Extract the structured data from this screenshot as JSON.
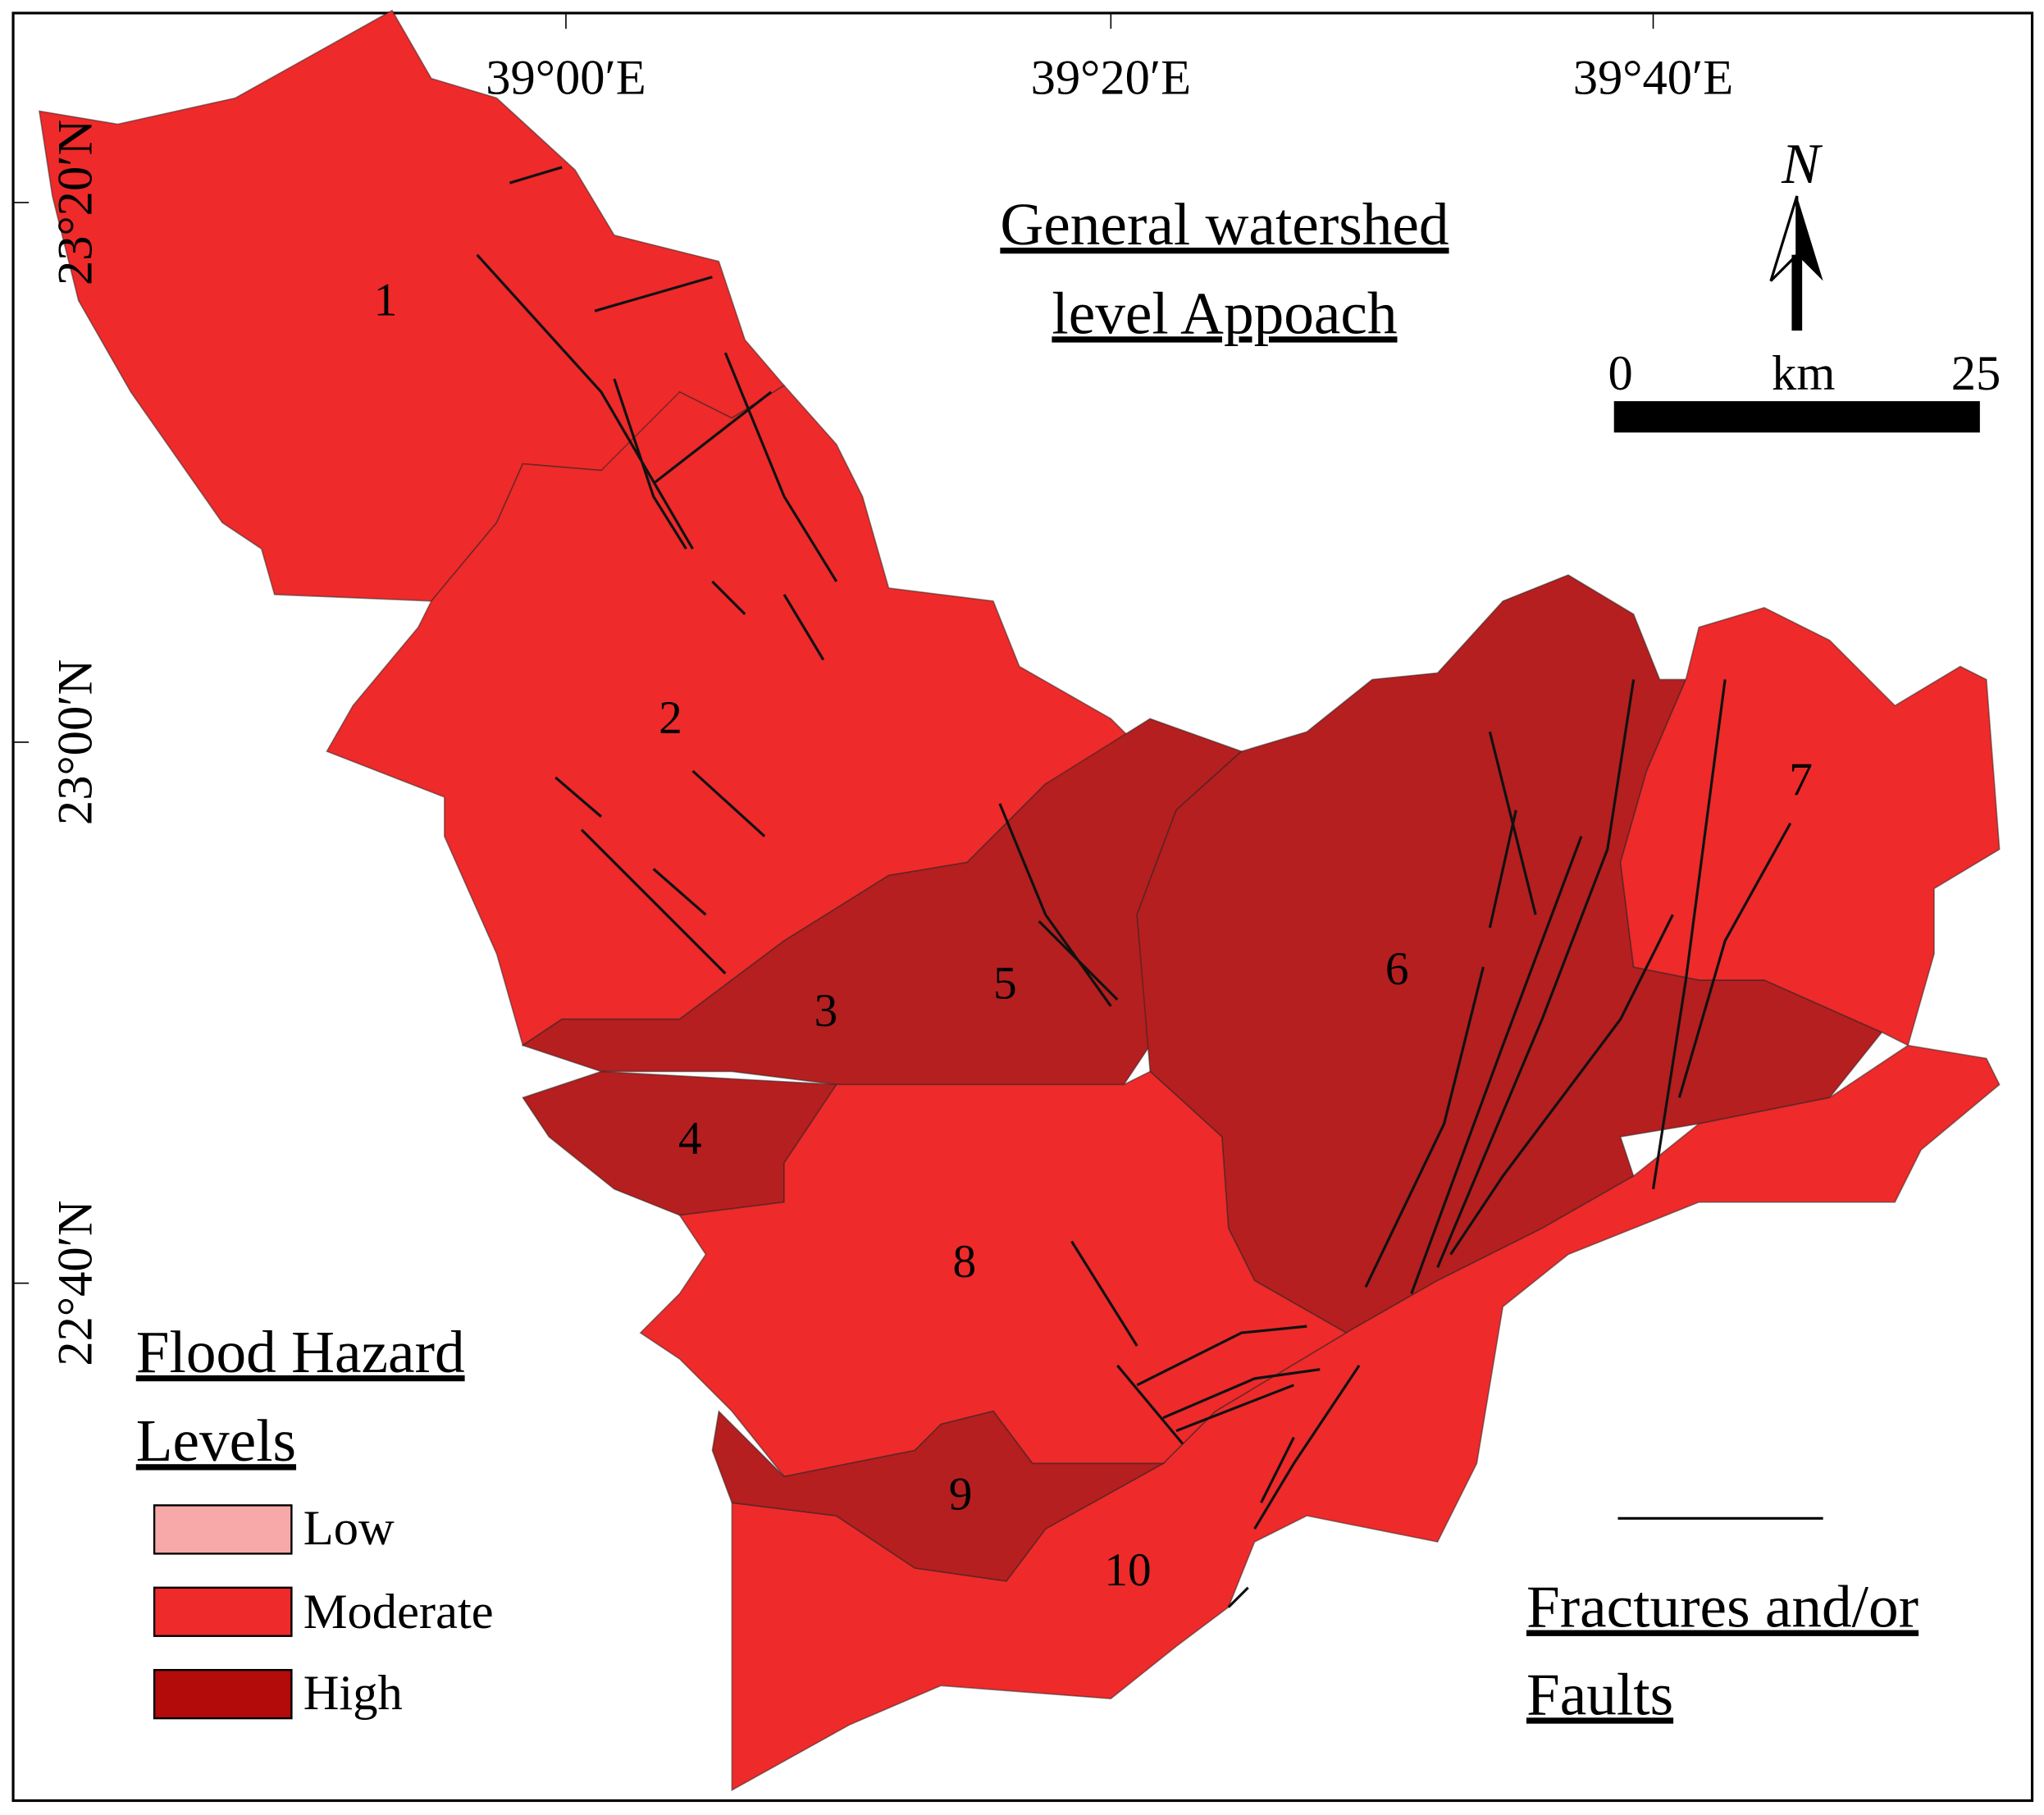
{
  "header": {
    "title": [
      "General watershed",
      "level Appoach"
    ]
  },
  "axes": {
    "top_labels": [
      "39°00′E",
      "39°20′E",
      "39°40′E"
    ],
    "left_labels": [
      "23°20′N",
      "23°00′N",
      "22°40′N"
    ]
  },
  "north_arrow": {
    "label": "N"
  },
  "scale_bar": {
    "labels": [
      "0",
      "km",
      "25"
    ]
  },
  "legend": {
    "title": [
      "Flood Hazard",
      "Levels"
    ],
    "items": [
      "Low",
      "Moderate",
      "High"
    ]
  },
  "fractures_legend": {
    "label": [
      "Fractures and/or",
      "Faults"
    ]
  },
  "basins": {
    "labels": [
      "1",
      "2",
      "3",
      "4",
      "5",
      "6",
      "7",
      "8",
      "9",
      "10"
    ]
  }
}
